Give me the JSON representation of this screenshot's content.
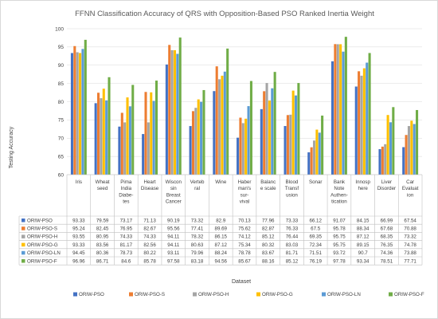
{
  "chart_data": {
    "type": "bar",
    "title": "FFNN Classification Accuracy of QRS with Opposition-Based PSO Ranked Inertia Weight",
    "xlabel": "Dataset",
    "ylabel": "Testing Accuracy",
    "ylim": [
      60,
      100
    ],
    "yticks": [
      60,
      65,
      70,
      75,
      80,
      85,
      90,
      95,
      100
    ],
    "grid": true,
    "legend_position": "bottom",
    "data_table": true,
    "categories": [
      [
        "Iris"
      ],
      [
        "Wheat",
        "seed"
      ],
      [
        "Pima",
        "India",
        "Diabe-",
        "tes"
      ],
      [
        "Heart",
        "Disease"
      ],
      [
        "Wiscon",
        "sin",
        "Breast",
        "Cancer"
      ],
      [
        "Verteb",
        "ral"
      ],
      [
        "Wine"
      ],
      [
        "Haber",
        "man's",
        "sur-",
        "vival"
      ],
      [
        "Balanc",
        "e scale"
      ],
      [
        "Blood",
        "Transf",
        "usion"
      ],
      [
        "Sonar"
      ],
      [
        "Bank",
        "Note",
        "Authen-",
        "tication"
      ],
      [
        "Innosp",
        "here"
      ],
      [
        "Liver",
        "Disorder"
      ],
      [
        "Car",
        "Evaluat",
        "ion"
      ]
    ],
    "series": [
      {
        "name": "ORIW-PSO",
        "color": "#4472C4",
        "values": [
          93.33,
          79.59,
          73.17,
          71.13,
          90.19,
          73.32,
          82.9,
          70.13,
          77.96,
          73.33,
          66.12,
          91.07,
          84.15,
          66.99,
          67.54
        ]
      },
      {
        "name": "ORIW-PSO-S",
        "color": "#ED7D31",
        "values": [
          95.24,
          82.45,
          76.95,
          82.67,
          95.56,
          77.41,
          89.69,
          75.62,
          82.87,
          76.33,
          67.5,
          95.78,
          88.34,
          67.68,
          70.88
        ]
      },
      {
        "name": "ORIW-PSO-H",
        "color": "#A5A5A5",
        "values": [
          93.55,
          80.95,
          74.33,
          74.33,
          94.11,
          78.32,
          86.15,
          74.12,
          85.12,
          76.44,
          69.35,
          95.75,
          87.12,
          68.35,
          73.32
        ]
      },
      {
        "name": "ORIW-PSO-G",
        "color": "#FFC000",
        "values": [
          93.33,
          83.56,
          81.17,
          82.56,
          94.11,
          80.63,
          87.12,
          75.34,
          80.32,
          83.03,
          72.34,
          95.75,
          89.15,
          76.35,
          74.78
        ]
      },
      {
        "name": "ORIW-PSO-LN",
        "color": "#5B9BD5",
        "values": [
          94.45,
          80.36,
          78.73,
          80.22,
          93.11,
          79.96,
          88.24,
          78.78,
          83.67,
          81.71,
          71.51,
          93.72,
          90.7,
          74.36,
          73.88
        ]
      },
      {
        "name": "ORIW-PSO-F",
        "color": "#70AD47",
        "values": [
          96.96,
          86.71,
          84.6,
          85.78,
          97.58,
          83.18,
          94.56,
          85.67,
          88.16,
          85.12,
          76.19,
          97.78,
          93.34,
          78.51,
          77.71
        ]
      }
    ]
  }
}
